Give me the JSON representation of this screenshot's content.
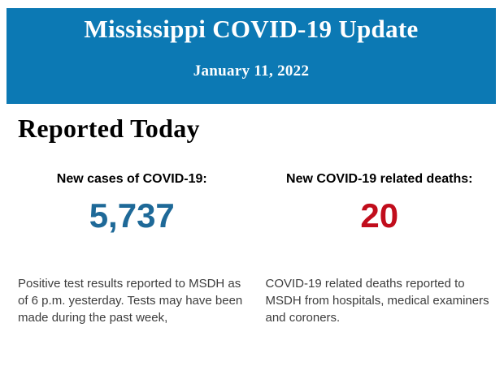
{
  "banner": {
    "title": "Mississippi COVID-19 Update",
    "date": "January 11, 2022",
    "background_color": "#0c79b4",
    "text_color": "#ffffff"
  },
  "body": {
    "heading": "Reported Today",
    "stats": [
      {
        "label": "New cases of COVID-19:",
        "value": "5,737",
        "value_color": "#1e6998",
        "description": "Positive test results reported to MSDH as of 6 p.m. yesterday. Tests may have been made during the past week,"
      },
      {
        "label": "New COVID-19 related deaths:",
        "value": "20",
        "value_color": "#c10d1c",
        "description": "COVID-19 related deaths reported to MSDH from hospitals, medical examiners and coroners."
      }
    ]
  }
}
